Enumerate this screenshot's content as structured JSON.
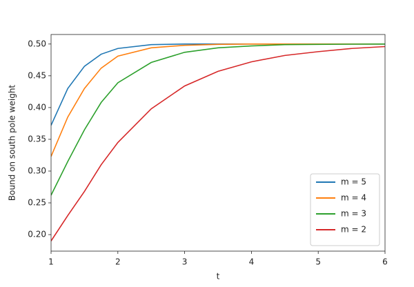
{
  "chart_data": {
    "type": "line",
    "xlabel": "t",
    "ylabel": "Bound on south pole weight",
    "x": [
      1,
      1.25,
      1.5,
      1.75,
      2,
      2.5,
      3,
      3.5,
      4,
      4.5,
      5,
      5.5,
      6
    ],
    "series": [
      {
        "name": "m = 5",
        "color": "#1f77b4",
        "values": [
          0.372,
          0.43,
          0.465,
          0.484,
          0.493,
          0.499,
          0.5,
          0.5,
          0.5,
          0.5,
          0.5,
          0.5,
          0.5
        ]
      },
      {
        "name": "m = 4",
        "color": "#ff7f0e",
        "values": [
          0.323,
          0.385,
          0.43,
          0.462,
          0.481,
          0.494,
          0.498,
          0.4995,
          0.5,
          0.5,
          0.5,
          0.5,
          0.5
        ]
      },
      {
        "name": "m = 3",
        "color": "#2ca02c",
        "values": [
          0.262,
          0.315,
          0.365,
          0.408,
          0.439,
          0.471,
          0.487,
          0.494,
          0.497,
          0.499,
          0.4995,
          0.4998,
          0.5
        ]
      },
      {
        "name": "m = 2",
        "color": "#d62728",
        "values": [
          0.19,
          0.23,
          0.268,
          0.31,
          0.345,
          0.398,
          0.434,
          0.457,
          0.472,
          0.482,
          0.488,
          0.493,
          0.496
        ]
      }
    ],
    "xlim": [
      1,
      6
    ],
    "xticks": [
      1,
      2,
      3,
      4,
      5,
      6
    ],
    "ylim": [
      0.174,
      0.515
    ],
    "yticks": [
      {
        "value": 0.2,
        "label": "0.20"
      },
      {
        "value": 0.25,
        "label": "0.25"
      },
      {
        "value": 0.3,
        "label": "0.30"
      },
      {
        "value": 0.35,
        "label": "0.35"
      },
      {
        "value": 0.4,
        "label": "0.40"
      },
      {
        "value": 0.45,
        "label": "0.45"
      },
      {
        "value": 0.5,
        "label": "0.50"
      }
    ],
    "legend": "lower right"
  }
}
